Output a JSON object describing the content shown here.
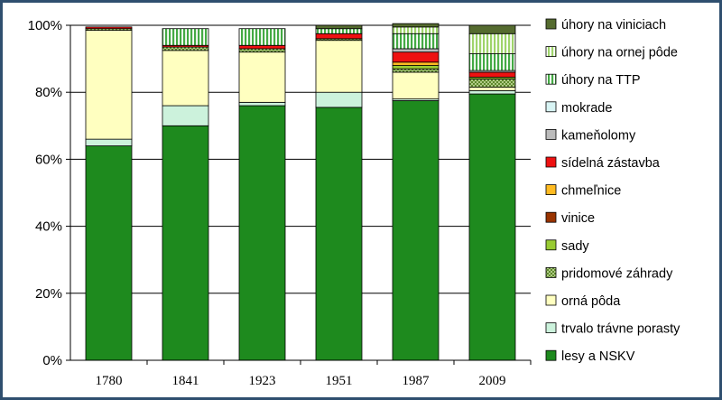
{
  "chart_data": {
    "type": "bar",
    "stacked": true,
    "title": "",
    "xlabel": "",
    "ylabel": "",
    "ylim": [
      0,
      100
    ],
    "y_ticks": [
      "0%",
      "20%",
      "40%",
      "60%",
      "80%",
      "100%"
    ],
    "grid": true,
    "legend_position": "right",
    "categories": [
      "1780",
      "1841",
      "1923",
      "1951",
      "1987",
      "2009"
    ],
    "series": [
      {
        "name": "lesy a NSKV",
        "color": "#1e8a1e",
        "pattern": "solid",
        "values": [
          64,
          70,
          76,
          75.5,
          77.5,
          79.5
        ]
      },
      {
        "name": "trvalo trávne porasty",
        "color": "#ccf2dc",
        "pattern": "solid",
        "values": [
          2,
          6,
          1,
          4.5,
          0.5,
          1
        ]
      },
      {
        "name": "orná pôda",
        "color": "#ffffc0",
        "pattern": "solid",
        "values": [
          32.5,
          16.5,
          15,
          15.5,
          8,
          1
        ]
      },
      {
        "name": "pridomové záhrady",
        "color": "#a8d068",
        "pattern": "cross",
        "values": [
          0.5,
          1,
          1,
          0.5,
          1,
          2.5
        ]
      },
      {
        "name": "sady",
        "color": "#99cc33",
        "pattern": "solid",
        "values": [
          0,
          0,
          0,
          0,
          1,
          0.5
        ]
      },
      {
        "name": "vinice",
        "color": "#993300",
        "pattern": "solid",
        "values": [
          0,
          0,
          0,
          0,
          0,
          0
        ]
      },
      {
        "name": "chmeľnice",
        "color": "#ffbb22",
        "pattern": "solid",
        "values": [
          0,
          0,
          0,
          0,
          1,
          0
        ]
      },
      {
        "name": "sídelná zástavba",
        "color": "#ee1111",
        "pattern": "solid",
        "values": [
          0.5,
          0.5,
          1,
          1.5,
          3,
          1.5
        ]
      },
      {
        "name": "kameňolomy",
        "color": "#bbbbbb",
        "pattern": "solid",
        "values": [
          0,
          0,
          0,
          0,
          1,
          0.5
        ]
      },
      {
        "name": "mokrade",
        "color": "#d8f4f4",
        "pattern": "solid",
        "values": [
          0,
          0,
          0,
          0,
          0,
          0
        ]
      },
      {
        "name": "úhory na TTP",
        "color": "#66bb66",
        "pattern": "vstripes",
        "values": [
          0,
          5,
          5,
          1.5,
          4.5,
          5
        ]
      },
      {
        "name": "úhory na ornej pôde",
        "color": "#b8e08a",
        "pattern": "vstripes",
        "values": [
          0,
          0,
          0,
          0,
          2,
          6
        ]
      },
      {
        "name": "úhory na viniciach",
        "color": "#556b2f",
        "pattern": "solid",
        "values": [
          0,
          0,
          0,
          1,
          1,
          2.5
        ]
      }
    ]
  }
}
